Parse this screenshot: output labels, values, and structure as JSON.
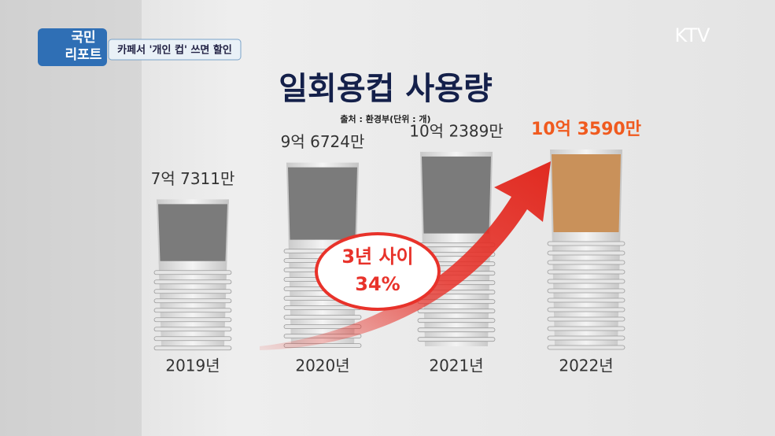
{
  "chart_data": {
    "type": "bar",
    "title": "일회용컵 사용량",
    "source": "출처 : 환경부(단위 : 개)",
    "program": [
      "국민",
      "리포트"
    ],
    "subtitle": "카페서 '개인 컵' 쓰면 할인",
    "channel": "KTV",
    "annotation": [
      "3년 사이",
      "34%"
    ],
    "categories": [
      "2019년",
      "2020년",
      "2021년",
      "2022년"
    ],
    "values": [
      773110000,
      967240000,
      1023890000,
      1035900000
    ],
    "value_labels": [
      "7억 7311만",
      "9억 6724만",
      "10억 2389만",
      "10억 3590만"
    ],
    "colors": [
      "#7b7b7b",
      "#7b7b7b",
      "#7b7b7b",
      "#c9915a"
    ],
    "label_colors": [
      "#333333",
      "#333333",
      "#333333",
      "#f05a1e"
    ]
  }
}
